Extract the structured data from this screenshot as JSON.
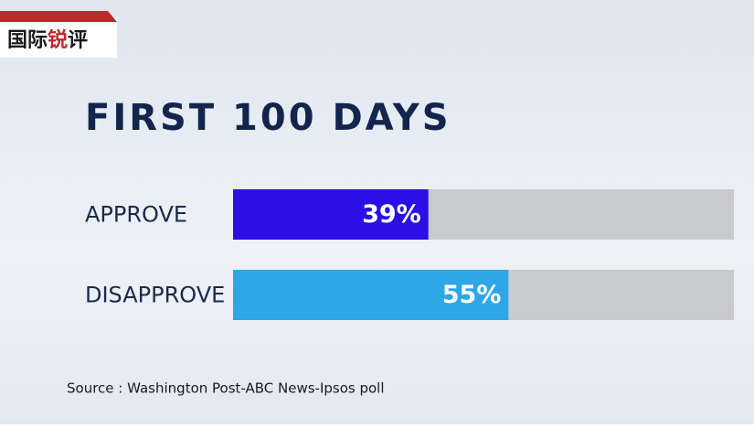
{
  "logo": [
    "国际",
    "锐",
    "评"
  ],
  "chart_data": {
    "type": "bar",
    "orientation": "horizontal",
    "title": "FIRST 100 DAYS",
    "categories": [
      "APPROVE",
      "DISAPPROVE"
    ],
    "values": [
      39,
      55
    ],
    "value_labels": [
      "39%",
      "55%"
    ],
    "colors": [
      "#2a10e6",
      "#2ea7e6"
    ],
    "track_color": "#c9cace",
    "xlim": [
      0,
      100
    ],
    "source": "Source : Washington Post-ABC News-Ipsos poll"
  }
}
